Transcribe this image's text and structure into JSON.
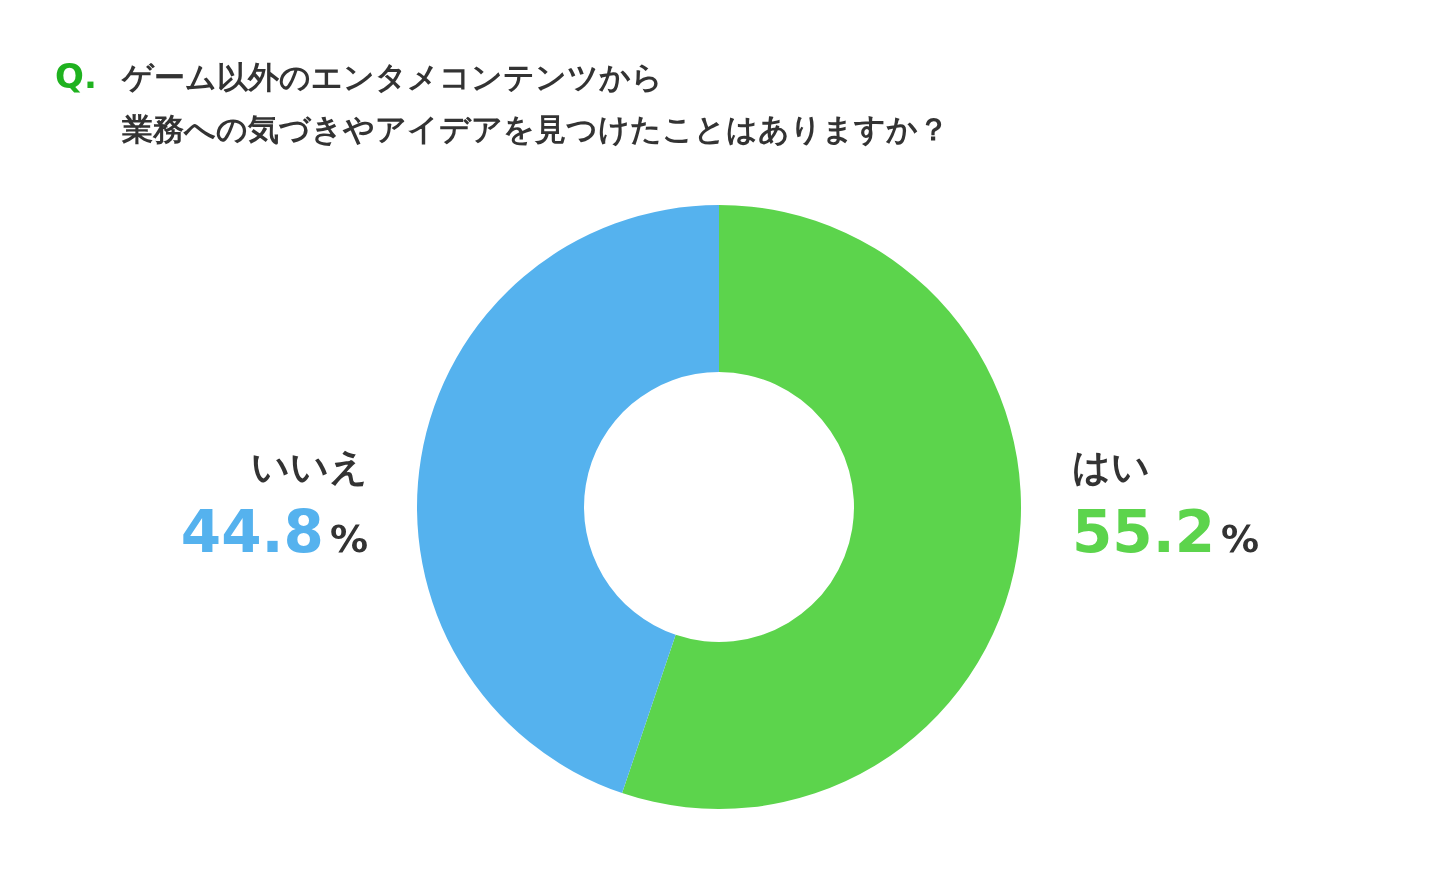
{
  "chart_data": {
    "type": "donut",
    "title": "Q. ゲーム以外のエンタメコンテンツから",
    "subtitle": "業務への気づきやアイデアを見つけたことはありますか？",
    "categories": [
      "はい",
      "いいえ"
    ],
    "values": [
      55.2,
      44.8
    ],
    "colors": [
      "#5cd44c",
      "#55b2ee"
    ],
    "value_labels": [
      "55.2%",
      "44.8%"
    ]
  }
}
